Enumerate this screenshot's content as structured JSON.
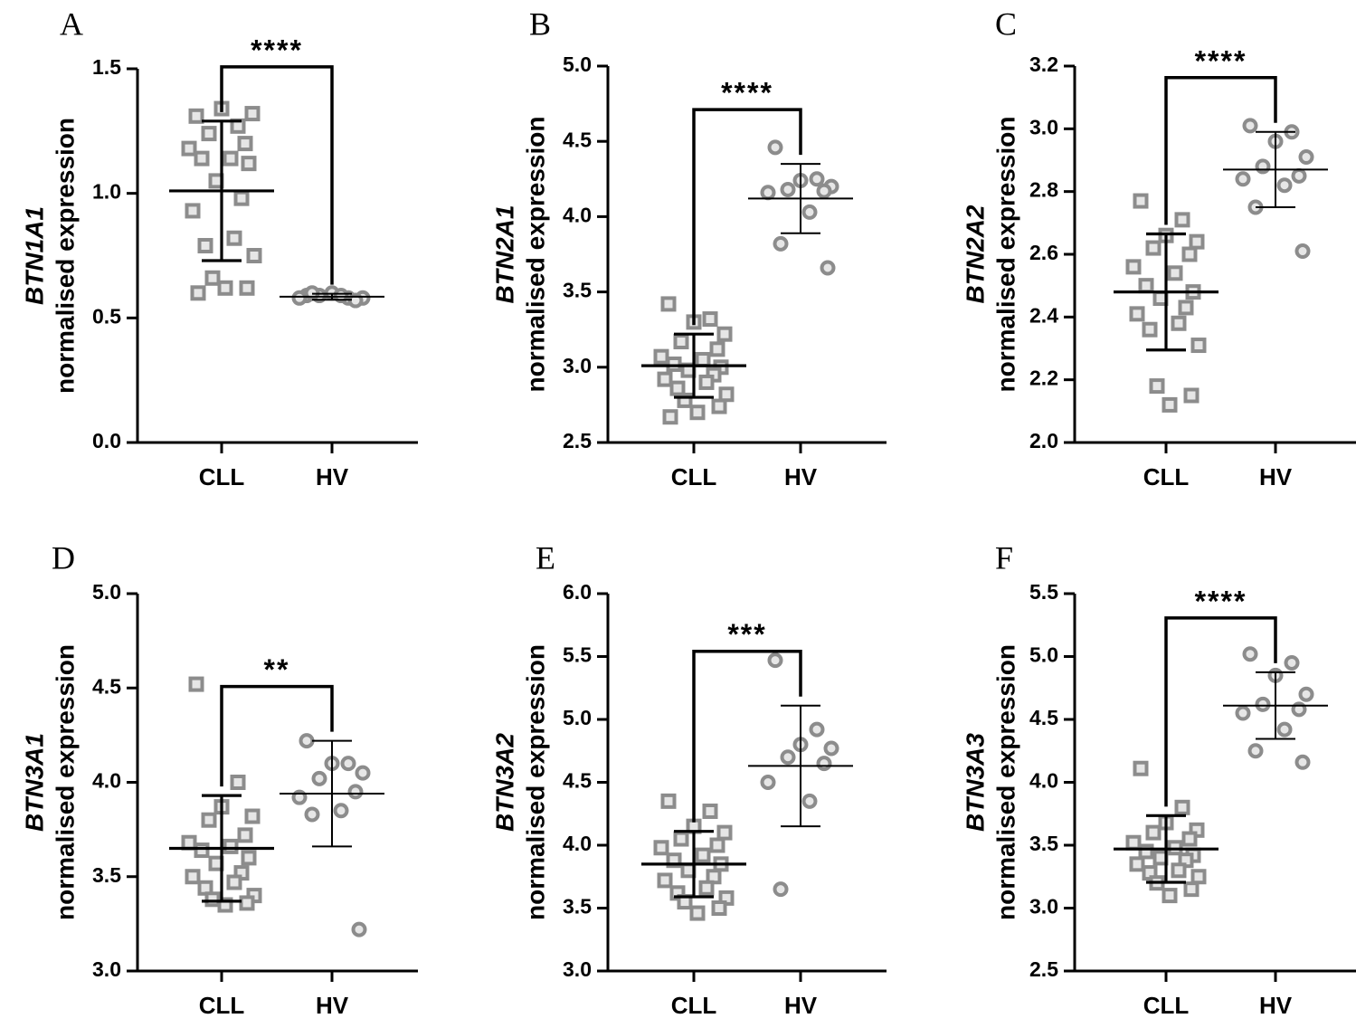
{
  "chart_data": [
    {
      "type": "scatter",
      "panel": "A",
      "gene": "BTN1A1",
      "ylabel_suffix": "normalised expression",
      "categories": [
        "CLL",
        "HV"
      ],
      "ylim": [
        0,
        1.5
      ],
      "yticks": [
        "0.0",
        "0.5",
        "1.0",
        "1.5"
      ],
      "significance": "****",
      "series": [
        {
          "name": "CLL",
          "marker": "square",
          "mean": 1.01,
          "sd": 0.28,
          "values": [
            1.31,
            1.27,
            1.34,
            1.32,
            1.24,
            1.2,
            1.18,
            1.14,
            1.14,
            1.12,
            1.05,
            0.98,
            0.93,
            0.82,
            0.79,
            0.75,
            0.66,
            0.62,
            0.62,
            0.6
          ]
        },
        {
          "name": "HV",
          "marker": "circle",
          "mean": 0.585,
          "sd": 0.012,
          "values": [
            0.59,
            0.58,
            0.6,
            0.58,
            0.59,
            0.57,
            0.58,
            0.59,
            0.6
          ]
        }
      ]
    },
    {
      "type": "scatter",
      "panel": "B",
      "gene": "BTN2A1",
      "ylabel_suffix": "normalised expression",
      "categories": [
        "CLL",
        "HV"
      ],
      "ylim": [
        2.5,
        5.0
      ],
      "yticks": [
        "2.5",
        "3.0",
        "3.5",
        "4.0",
        "4.5",
        "5.0"
      ],
      "significance": "****",
      "series": [
        {
          "name": "CLL",
          "marker": "square",
          "mean": 3.01,
          "sd": 0.21,
          "values": [
            3.42,
            3.32,
            3.3,
            3.22,
            3.17,
            3.12,
            3.07,
            3.05,
            3.02,
            3.0,
            2.98,
            2.95,
            2.92,
            2.9,
            2.86,
            2.82,
            2.78,
            2.74,
            2.7,
            2.67
          ]
        },
        {
          "name": "HV",
          "marker": "circle",
          "mean": 4.12,
          "sd": 0.23,
          "values": [
            4.46,
            4.25,
            4.24,
            4.2,
            4.18,
            4.17,
            4.16,
            4.03,
            3.82,
            3.66
          ]
        }
      ]
    },
    {
      "type": "scatter",
      "panel": "C",
      "gene": "BTN2A2",
      "ylabel_suffix": "normalised expression",
      "categories": [
        "CLL",
        "HV"
      ],
      "ylim": [
        2.0,
        3.2
      ],
      "yticks": [
        "2.0",
        "2.2",
        "2.4",
        "2.6",
        "2.8",
        "3.0",
        "3.2"
      ],
      "significance": "****",
      "series": [
        {
          "name": "CLL",
          "marker": "square",
          "mean": 2.48,
          "sd": 0.185,
          "values": [
            2.77,
            2.71,
            2.66,
            2.64,
            2.62,
            2.6,
            2.56,
            2.54,
            2.5,
            2.48,
            2.46,
            2.43,
            2.41,
            2.38,
            2.36,
            2.31,
            2.18,
            2.15,
            2.12
          ]
        },
        {
          "name": "HV",
          "marker": "circle",
          "mean": 2.87,
          "sd": 0.12,
          "values": [
            3.01,
            2.99,
            2.96,
            2.91,
            2.88,
            2.85,
            2.84,
            2.82,
            2.75,
            2.61
          ]
        }
      ]
    },
    {
      "type": "scatter",
      "panel": "D",
      "gene": "BTN3A1",
      "ylabel_suffix": "normalised expression",
      "categories": [
        "CLL",
        "HV"
      ],
      "ylim": [
        3.0,
        5.0
      ],
      "yticks": [
        "3.0",
        "3.5",
        "4.0",
        "4.5",
        "5.0"
      ],
      "significance": "**",
      "series": [
        {
          "name": "CLL",
          "marker": "square",
          "mean": 3.65,
          "sd": 0.28,
          "values": [
            4.52,
            4.0,
            3.87,
            3.82,
            3.8,
            3.72,
            3.68,
            3.66,
            3.64,
            3.6,
            3.57,
            3.52,
            3.5,
            3.47,
            3.44,
            3.4,
            3.38,
            3.36,
            3.35
          ]
        },
        {
          "name": "HV",
          "marker": "circle",
          "mean": 3.94,
          "sd": 0.28,
          "values": [
            4.22,
            4.1,
            4.1,
            4.05,
            4.02,
            3.95,
            3.92,
            3.85,
            3.83,
            3.22
          ]
        }
      ]
    },
    {
      "type": "scatter",
      "panel": "E",
      "gene": "BTN3A2",
      "ylabel_suffix": "normalised expression",
      "categories": [
        "CLL",
        "HV"
      ],
      "ylim": [
        3.0,
        6.0
      ],
      "yticks": [
        "3.0",
        "3.5",
        "4.0",
        "4.5",
        "5.0",
        "5.5",
        "6.0"
      ],
      "significance": "***",
      "series": [
        {
          "name": "CLL",
          "marker": "square",
          "mean": 3.85,
          "sd": 0.26,
          "values": [
            4.35,
            4.27,
            4.15,
            4.1,
            4.05,
            4.0,
            3.98,
            3.92,
            3.88,
            3.85,
            3.8,
            3.75,
            3.72,
            3.66,
            3.62,
            3.58,
            3.55,
            3.5,
            3.46
          ]
        },
        {
          "name": "HV",
          "marker": "circle",
          "mean": 4.63,
          "sd": 0.48,
          "values": [
            5.47,
            4.92,
            4.8,
            4.77,
            4.7,
            4.65,
            4.5,
            4.35,
            3.65
          ]
        }
      ]
    },
    {
      "type": "scatter",
      "panel": "F",
      "gene": "BTN3A3",
      "ylabel_suffix": "normalised expression",
      "categories": [
        "CLL",
        "HV"
      ],
      "ylim": [
        2.5,
        5.5
      ],
      "yticks": [
        "2.5",
        "3.0",
        "3.5",
        "4.0",
        "4.5",
        "5.0",
        "5.5"
      ],
      "significance": "****",
      "series": [
        {
          "name": "CLL",
          "marker": "square",
          "mean": 3.47,
          "sd": 0.265,
          "values": [
            4.11,
            3.8,
            3.68,
            3.62,
            3.6,
            3.55,
            3.52,
            3.48,
            3.45,
            3.42,
            3.4,
            3.38,
            3.35,
            3.3,
            3.28,
            3.25,
            3.2,
            3.15,
            3.1
          ]
        },
        {
          "name": "HV",
          "marker": "circle",
          "mean": 4.61,
          "sd": 0.265,
          "values": [
            5.02,
            4.95,
            4.85,
            4.7,
            4.62,
            4.58,
            4.55,
            4.42,
            4.25,
            4.16
          ]
        }
      ]
    }
  ]
}
